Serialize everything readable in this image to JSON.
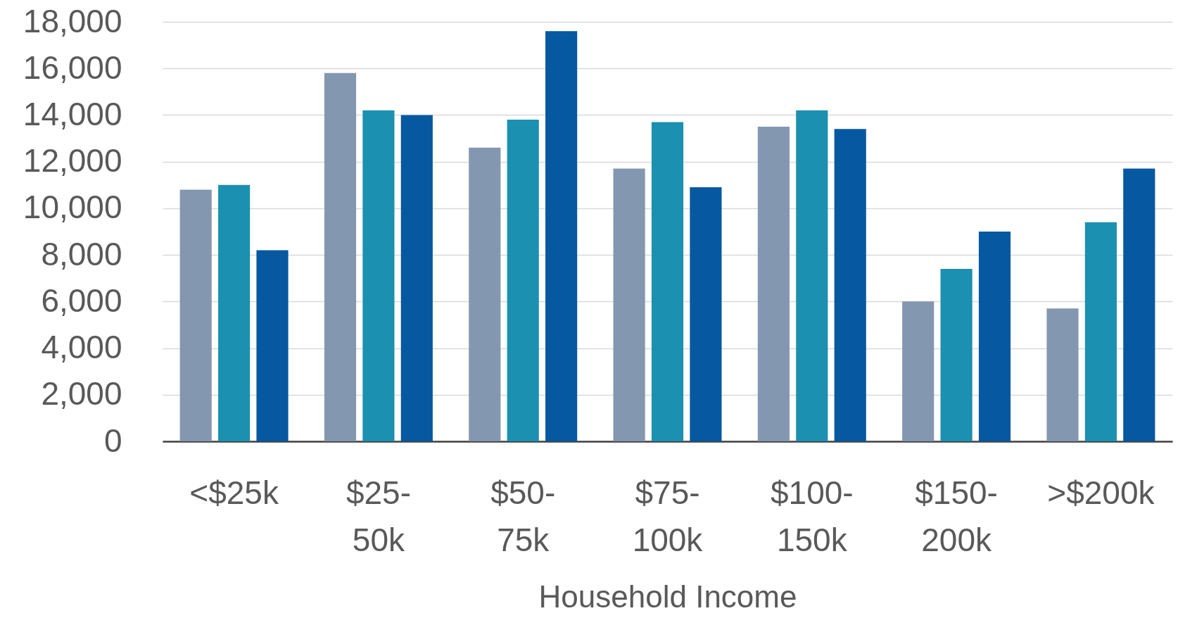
{
  "chart_data": {
    "type": "bar",
    "categories": [
      "<$25k",
      "$25-50k",
      "$50-75k",
      "$75-100k",
      "$100-150k",
      "$150-200k",
      ">$200k"
    ],
    "series": [
      {
        "color": "#8497b0",
        "values": [
          10800,
          15800,
          12600,
          11700,
          13500,
          6000,
          5700
        ]
      },
      {
        "color": "#1b90b0",
        "values": [
          11000,
          14200,
          13800,
          13700,
          14200,
          7400,
          9400
        ]
      },
      {
        "color": "#0658a0",
        "values": [
          8200,
          14000,
          17600,
          10900,
          13400,
          9000,
          11700
        ]
      }
    ],
    "xlabel": "Household Income",
    "ylim": [
      0,
      18000
    ],
    "yticks": [
      0,
      {
        "value": 2000,
        "label": "2,000"
      },
      {
        "value": 4000,
        "label": "4,000"
      },
      {
        "value": 6000,
        "label": "6,000"
      },
      {
        "value": 8000,
        "label": "8,000"
      },
      {
        "value": 10000,
        "label": "10,000"
      },
      {
        "value": 12000,
        "label": "12,000"
      },
      {
        "value": 14000,
        "label": "14,000"
      },
      {
        "value": 16000,
        "label": "16,000"
      },
      {
        "value": 18000,
        "label": "18,000"
      }
    ],
    "grid": "y"
  }
}
